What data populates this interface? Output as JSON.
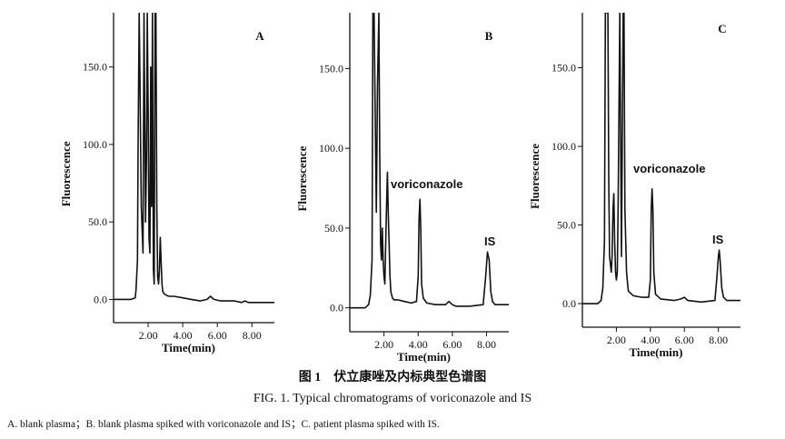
{
  "figure": {
    "caption_cn": "图 1　伏立康唑及内标典型色谱图",
    "caption_en": "FIG. 1.  Typical chromatograms of voriconazole and IS",
    "legend": "A. blank plasma；B. blank plasma spiked with voriconazole and IS；C. patient plasma spiked with IS."
  },
  "chart_data": [
    {
      "type": "line",
      "panel": "A",
      "xlabel": "Time(min)",
      "ylabel": "Fluorescence",
      "xlim": [
        0,
        9.3
      ],
      "ylim": [
        -15,
        185
      ],
      "x_ticks": [
        2.0,
        4.0,
        6.0,
        8.0
      ],
      "x_tick_labels": [
        "2.00",
        "4.00",
        "6.00",
        "8.00"
      ],
      "y_ticks": [
        0,
        50,
        100,
        150
      ],
      "y_tick_labels": [
        "0.0",
        "50.0",
        "100.0",
        "150.0"
      ],
      "annotations": [],
      "series": [
        {
          "x": [
            0,
            1.0,
            1.25,
            1.3,
            1.38,
            1.42,
            1.48,
            1.52,
            1.6,
            1.7,
            1.76,
            1.8,
            1.85,
            1.9,
            1.95,
            2.0,
            2.05,
            2.1,
            2.15,
            2.2,
            2.25,
            2.3,
            2.35,
            2.4,
            2.45,
            2.5,
            2.55,
            2.6,
            2.65,
            2.7,
            2.75,
            2.8,
            2.85,
            2.9,
            3.0,
            3.2,
            3.5,
            4.0,
            4.5,
            5.0,
            5.4,
            5.6,
            5.8,
            6.2,
            7.0,
            7.4,
            7.6,
            7.8,
            8.5,
            9.3
          ],
          "y": [
            0,
            0,
            1,
            6,
            25,
            100,
            185,
            150,
            60,
            30,
            185,
            120,
            50,
            90,
            185,
            120,
            40,
            30,
            150,
            60,
            185,
            20,
            10,
            185,
            185,
            60,
            15,
            10,
            18,
            40,
            25,
            10,
            5,
            4,
            3,
            2,
            2,
            1,
            0,
            -1,
            0,
            2,
            0,
            -1,
            -1,
            -2,
            -1,
            -2,
            -2,
            -2
          ]
        }
      ]
    },
    {
      "type": "line",
      "panel": "B",
      "xlabel": "Time(min)",
      "ylabel": "Fluorescence",
      "xlim": [
        0,
        9.3
      ],
      "ylim": [
        -15,
        185
      ],
      "x_ticks": [
        2.0,
        4.0,
        6.0,
        8.0
      ],
      "x_tick_labels": [
        "2.00",
        "4.00",
        "6.00",
        "8.00"
      ],
      "y_ticks": [
        0,
        50,
        100,
        150
      ],
      "y_tick_labels": [
        "0.0",
        "50.0",
        "100.0",
        "150.0"
      ],
      "annotations": [
        "voriconazole",
        "IS"
      ],
      "series": [
        {
          "x": [
            0,
            0.9,
            1.1,
            1.2,
            1.3,
            1.35,
            1.42,
            1.48,
            1.55,
            1.62,
            1.7,
            1.75,
            1.8,
            1.85,
            1.9,
            1.95,
            2.0,
            2.05,
            2.1,
            2.15,
            2.2,
            2.25,
            2.3,
            2.35,
            2.4,
            2.45,
            2.5,
            2.6,
            2.8,
            3.2,
            3.6,
            3.9,
            4.0,
            4.05,
            4.1,
            4.15,
            4.2,
            4.3,
            4.5,
            5.0,
            5.6,
            5.8,
            6.0,
            6.2,
            7.0,
            7.8,
            7.95,
            8.05,
            8.15,
            8.25,
            8.35,
            8.5,
            9.3
          ],
          "y": [
            0,
            0,
            2,
            8,
            30,
            185,
            185,
            130,
            60,
            140,
            185,
            100,
            40,
            30,
            50,
            30,
            20,
            15,
            40,
            65,
            85,
            60,
            40,
            20,
            10,
            8,
            6,
            5,
            5,
            4,
            3,
            4,
            20,
            55,
            68,
            50,
            15,
            6,
            3,
            2,
            2,
            4,
            2,
            1,
            1,
            2,
            20,
            35,
            30,
            10,
            4,
            2,
            2
          ]
        }
      ]
    },
    {
      "type": "line",
      "panel": "C",
      "xlabel": "Time(min)",
      "ylabel": "Fluorescence",
      "xlim": [
        0,
        9.3
      ],
      "ylim": [
        -15,
        185
      ],
      "x_ticks": [
        2.0,
        4.0,
        6.0,
        8.0
      ],
      "x_tick_labels": [
        "2.00",
        "4.00",
        "6.00",
        "8.00"
      ],
      "y_ticks": [
        0,
        50,
        100,
        150
      ],
      "y_tick_labels": [
        "0.0",
        "50.0",
        "100.0",
        "150.0"
      ],
      "annotations": [
        "voriconazole",
        "IS"
      ],
      "series": [
        {
          "x": [
            0,
            0.9,
            1.1,
            1.2,
            1.3,
            1.35,
            1.42,
            1.5,
            1.55,
            1.6,
            1.7,
            1.75,
            1.8,
            1.85,
            1.9,
            1.95,
            2.0,
            2.05,
            2.1,
            2.2,
            2.3,
            2.4,
            2.45,
            2.5,
            2.6,
            2.7,
            3.0,
            3.5,
            3.9,
            4.0,
            4.05,
            4.1,
            4.15,
            4.2,
            4.3,
            4.6,
            5.4,
            5.8,
            6.0,
            6.2,
            7.0,
            7.8,
            7.9,
            8.0,
            8.05,
            8.1,
            8.2,
            8.3,
            8.5,
            9.3
          ],
          "y": [
            0,
            0,
            2,
            10,
            40,
            185,
            185,
            185,
            80,
            30,
            20,
            30,
            60,
            70,
            40,
            20,
            15,
            20,
            60,
            185,
            30,
            185,
            185,
            60,
            20,
            8,
            5,
            4,
            4,
            15,
            60,
            73,
            60,
            20,
            6,
            3,
            2,
            3,
            4,
            2,
            1,
            2,
            15,
            30,
            34,
            28,
            10,
            4,
            2,
            2
          ]
        }
      ]
    }
  ]
}
